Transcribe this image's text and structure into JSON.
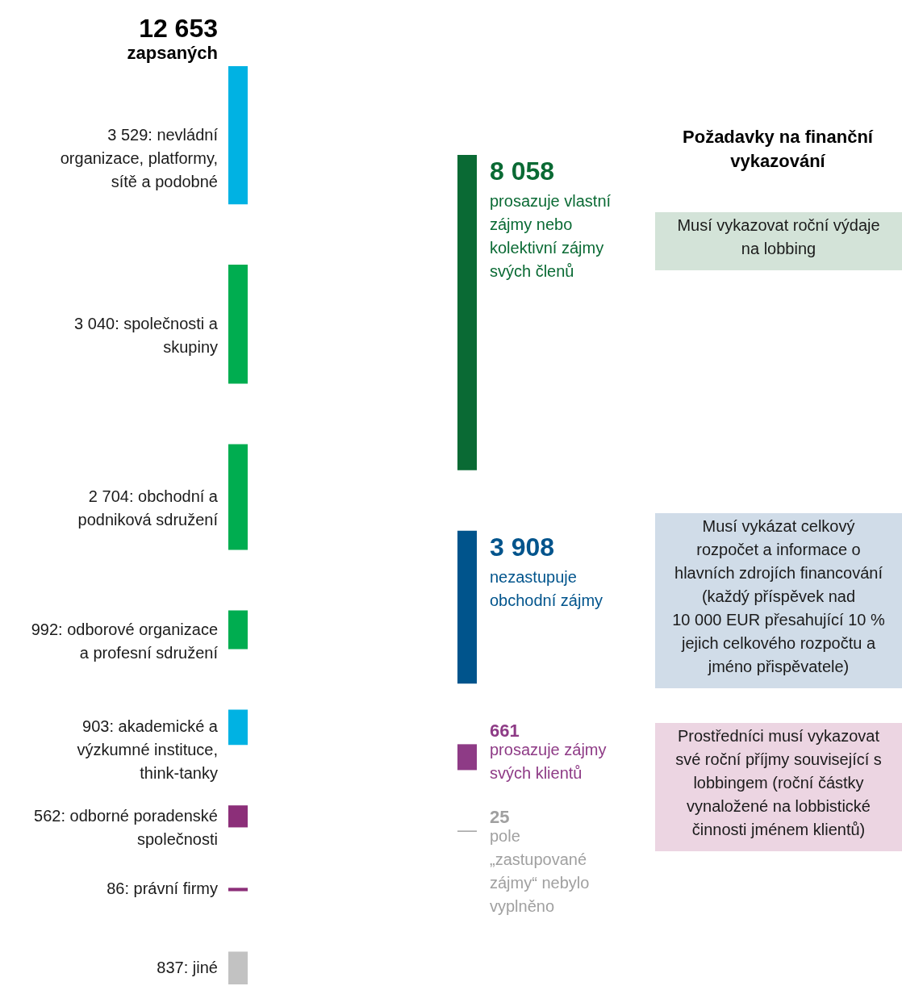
{
  "chart_data": [
    {
      "type": "other",
      "title": "12 653",
      "subtitle": "zapsaných",
      "categories": [
        "nevládní\norganizace, platformy,\nsítě a podobné",
        "společnosti a\nskupiny",
        "obchodní a\npodniková sdružení",
        "odborové organizace\na profesní sdružení",
        "akademické a\nvýzkumné instituce,\nthink-tanky",
        "odborné poradenské\nspolečnosti",
        "právní firmy",
        "jiné"
      ],
      "values": [
        3529,
        3040,
        2704,
        992,
        903,
        562,
        86,
        837
      ],
      "value_labels": [
        "3 529:",
        "3 040:",
        "2 704:",
        "992:",
        "903:",
        "562:",
        "86:",
        "837:"
      ],
      "colors": [
        "#00b2e3",
        "#00ad50",
        "#00ad50",
        "#00ad50",
        "#00b2e3",
        "#8c2f79",
        "#8c2f79",
        "#c2c2c2"
      ]
    },
    {
      "type": "other",
      "categories": [
        "prosazuje vlastní\nzájmy nebo\nkolektivní zájmy\nsvých členů",
        "nezastupuje\nobchodní zájmy",
        "prosazuje zájmy\nsvých klientů",
        "pole\n„zastupované\nzájmy“ nebylo\nvyplněno"
      ],
      "values": [
        8058,
        3908,
        661,
        25
      ],
      "value_labels": [
        "8 058",
        "3 908",
        "661",
        "25"
      ],
      "colors": [
        "#0a6a34",
        "#00548c",
        "#8e3b86",
        "#a0a0a0"
      ]
    },
    {
      "type": "other",
      "title": "Požadavky na finanční\nvykazování",
      "categories": [
        "Musí vykazovat roční výdaje\nna lobbing",
        "Musí vykázat celkový\nrozpočet a informace o\nhlavních zdrojích financování\n(každý příspěvek nad\n10 000 EUR přesahující 10 %\njejich celkového rozpočtu a\njméno přispěvatele)",
        "Prostředníci musí vykazovat\nsvé roční příjmy související s\nlobbingem (roční částky\nvynaložené na lobbistické\nčinnosti jménem klientů)"
      ],
      "colors": [
        "#d3e3d8",
        "#d0dce8",
        "#ecd5e2"
      ]
    }
  ]
}
